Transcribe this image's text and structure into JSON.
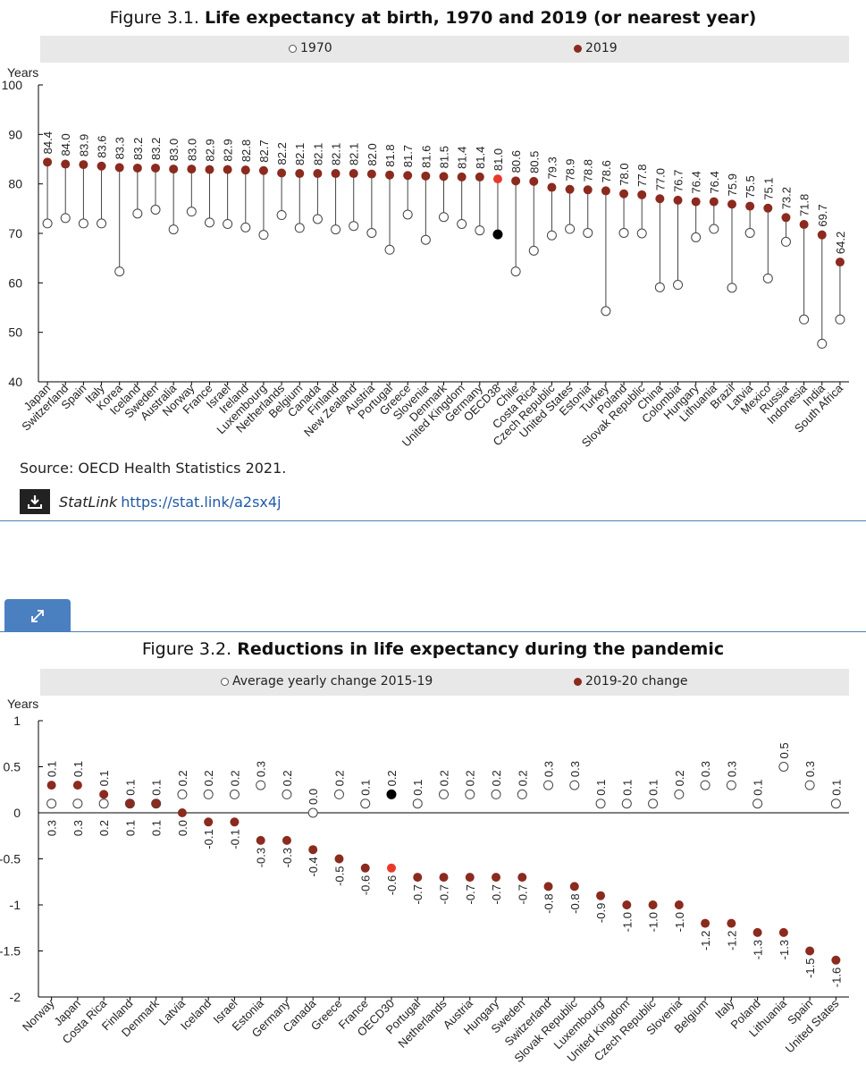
{
  "figure1": {
    "title_prefix": "Figure 3.1. ",
    "title_bold": "Life expectancy at birth, 1970 and 2019 (or nearest year)",
    "legend": {
      "open": "1970",
      "filled": "2019"
    },
    "source": "Source: OECD Health Statistics 2021.",
    "statlink_label": "StatLink",
    "statlink_url": "https://stat.link/a2sx4j"
  },
  "figure2": {
    "title_prefix": "Figure 3.2. ",
    "title_bold": "Reductions in life expectancy during the pandemic",
    "legend": {
      "open": "Average yearly change 2015-19",
      "filled": "2019-20 change"
    }
  },
  "colors": {
    "filled": "#8b2a1e",
    "highlight": "#e8392b",
    "oecd_open": "#000000",
    "legend_bg": "#e8e8e8",
    "rule": "#4a7fb5",
    "expand_tab": "#4a7fc0"
  },
  "icons": {
    "statlink": "download-icon",
    "expand": "expand-arrows-icon"
  },
  "chart_data": [
    {
      "type": "scatter",
      "title": "Life expectancy at birth, 1970 and 2019 (or nearest year)",
      "ylabel": "Years",
      "ylim": [
        40,
        100
      ],
      "yticks": [
        40,
        50,
        60,
        70,
        80,
        90,
        100
      ],
      "grid": false,
      "legend_position": "top",
      "highlight_category": "OECD38",
      "categories": [
        "Japan",
        "Switzerland",
        "Spain",
        "Italy",
        "Korea",
        "Iceland",
        "Sweden",
        "Australia",
        "Norway",
        "France",
        "Israel",
        "Ireland",
        "Luxembourg",
        "Netherlands",
        "Belgium",
        "Canada",
        "Finland",
        "New Zealand",
        "Austria",
        "Portugal",
        "Greece",
        "Slovenia",
        "Denmark",
        "United Kingdom",
        "Germany",
        "OECD38",
        "Chile",
        "Costa Rica",
        "Czech Republic",
        "United States",
        "Estonia",
        "Turkey",
        "Poland",
        "Slovak Republic",
        "China",
        "Colombia",
        "Hungary",
        "Lithuania",
        "Brazil",
        "Latvia",
        "Mexico",
        "Russia",
        "Indonesia",
        "India",
        "South Africa"
      ],
      "series": [
        {
          "name": "1970",
          "values": [
            72.0,
            73.1,
            72.0,
            72.0,
            62.3,
            74.0,
            74.8,
            70.8,
            74.4,
            72.2,
            71.9,
            71.2,
            69.7,
            73.7,
            71.1,
            72.9,
            70.8,
            71.5,
            70.1,
            66.7,
            73.8,
            68.7,
            73.3,
            71.9,
            70.6,
            69.8,
            62.3,
            66.5,
            69.6,
            70.9,
            70.1,
            54.3,
            70.1,
            70.0,
            59.1,
            59.6,
            69.2,
            70.9,
            59.0,
            70.1,
            60.9,
            68.3,
            52.6,
            47.7,
            52.6
          ]
        },
        {
          "name": "2019",
          "values": [
            84.4,
            84.0,
            83.9,
            83.6,
            83.3,
            83.2,
            83.2,
            83.0,
            83.0,
            82.9,
            82.9,
            82.8,
            82.7,
            82.2,
            82.1,
            82.1,
            82.1,
            82.1,
            82.0,
            81.8,
            81.7,
            81.6,
            81.5,
            81.4,
            81.4,
            81.0,
            80.6,
            80.5,
            79.3,
            78.9,
            78.8,
            78.6,
            78.0,
            77.8,
            77.0,
            76.7,
            76.4,
            76.4,
            75.9,
            75.5,
            75.1,
            73.2,
            71.8,
            69.7,
            64.2
          ]
        }
      ]
    },
    {
      "type": "scatter",
      "title": "Reductions in life expectancy during the pandemic",
      "ylabel": "Years",
      "ylim": [
        -2,
        1
      ],
      "yticks": [
        -2,
        -1.5,
        -1,
        -0.5,
        0,
        0.5,
        1
      ],
      "grid": false,
      "legend_position": "top",
      "highlight_category": "OECD30",
      "categories": [
        "Norway",
        "Japan",
        "Costa Rica",
        "Finland",
        "Denmark",
        "Latvia",
        "Iceland",
        "Israel",
        "Estonia",
        "Germany",
        "Canada",
        "Greece",
        "France",
        "OECD30",
        "Portugal",
        "Netherlands",
        "Austria",
        "Hungary",
        "Sweden",
        "Switzerland",
        "Slovak Republic",
        "Luxembourg",
        "United Kingdom",
        "Czech Republic",
        "Slovenia",
        "Belgium",
        "Italy",
        "Poland",
        "Lithuania",
        "Spain",
        "United States"
      ],
      "series": [
        {
          "name": "Average yearly change 2015-19",
          "values": [
            0.1,
            0.1,
            0.1,
            0.1,
            0.1,
            0.2,
            0.2,
            0.2,
            0.3,
            0.2,
            0.0,
            0.2,
            0.1,
            0.2,
            0.1,
            0.2,
            0.2,
            0.2,
            0.2,
            0.3,
            0.3,
            0.1,
            0.1,
            0.1,
            0.2,
            0.3,
            0.3,
            0.1,
            0.5,
            0.3,
            0.1
          ],
          "labels": [
            "0.1",
            "0.1",
            "0.1",
            "0.1",
            "0.1",
            "0.2",
            "0.2",
            "0.2",
            "0.3",
            "0.2",
            "0.0",
            "0.2",
            "0.1",
            "0.2",
            "0.1",
            "0.2",
            "0.2",
            "0.2",
            "0.2",
            "0.3",
            "0.3",
            "0.1",
            "0.1",
            "0.1",
            "0.2",
            "0.3",
            "0.3",
            "0.1",
            "0.5",
            "0.3",
            "0.1"
          ]
        },
        {
          "name": "2019-20 change",
          "values": [
            0.3,
            0.3,
            0.2,
            0.1,
            0.1,
            0.0,
            -0.1,
            -0.1,
            -0.3,
            -0.3,
            -0.4,
            -0.5,
            -0.6,
            -0.6,
            -0.7,
            -0.7,
            -0.7,
            -0.7,
            -0.7,
            -0.8,
            -0.8,
            -0.9,
            -1.0,
            -1.0,
            -1.0,
            -1.2,
            -1.2,
            -1.3,
            -1.3,
            -1.5,
            -1.6
          ],
          "labels": [
            "0.3",
            "0.3",
            "0.2",
            "0.1",
            "0.1",
            "0.0",
            "-0.1",
            "-0.1",
            "-0.3",
            "-0.3",
            "-0.4",
            "-0.5",
            "-0.6",
            "-0.6",
            "-0.7",
            "-0.7",
            "-0.7",
            "-0.7",
            "-0.7",
            "-0.8",
            "-0.8",
            "-0.9",
            "-1.0",
            "-1.0",
            "-1.0",
            "-1.2",
            "-1.2",
            "-1.3",
            "-1.3",
            "-1.5",
            "-1.6"
          ]
        }
      ]
    }
  ]
}
